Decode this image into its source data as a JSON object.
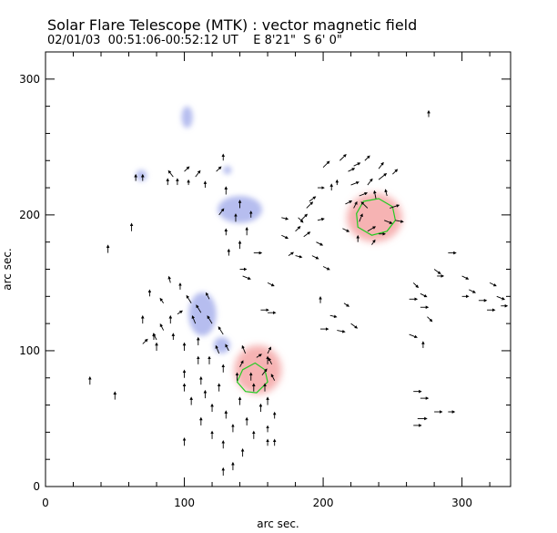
{
  "title": "Solar Flare Telescope (MTK) : vector magnetic field",
  "subtitle": "02/01/03  00:51:06-00:52:12 UT    E 8'21\"  S 6' 0\"",
  "chart_data": {
    "type": "vector-map",
    "xlabel": "arc sec.",
    "ylabel": "arc sec.",
    "xlim": [
      0,
      335
    ],
    "ylim": [
      0,
      320
    ],
    "xticks": [
      0,
      100,
      200,
      300
    ],
    "yticks": [
      0,
      100,
      200,
      300
    ],
    "polarity_colors": {
      "positive": "#f4a6a6",
      "negative": "#a9b2ec",
      "contour": "#22cc22",
      "vector": "#000000"
    },
    "positive_regions": [
      {
        "x": 237,
        "y": 198,
        "rx": 20,
        "ry": 18
      },
      {
        "x": 153,
        "y": 86,
        "rx": 17,
        "ry": 18
      }
    ],
    "negative_regions": [
      {
        "x": 113,
        "y": 127,
        "rx": 10,
        "ry": 16
      },
      {
        "x": 127,
        "y": 104,
        "rx": 6,
        "ry": 6
      },
      {
        "x": 140,
        "y": 204,
        "rx": 16,
        "ry": 10
      },
      {
        "x": 69,
        "y": 229,
        "rx": 4,
        "ry": 4
      },
      {
        "x": 102,
        "y": 272,
        "rx": 4,
        "ry": 8
      },
      {
        "x": 131,
        "y": 233,
        "rx": 3,
        "ry": 3
      }
    ],
    "contours": [
      [
        [
          229,
          210
        ],
        [
          240,
          212
        ],
        [
          250,
          206
        ],
        [
          252,
          196
        ],
        [
          246,
          188
        ],
        [
          235,
          185
        ],
        [
          225,
          191
        ],
        [
          224,
          201
        ]
      ],
      [
        [
          142,
          86
        ],
        [
          151,
          91
        ],
        [
          158,
          86
        ],
        [
          160,
          77
        ],
        [
          152,
          69
        ],
        [
          144,
          70
        ],
        [
          138,
          77
        ]
      ]
    ],
    "vectors": [
      [
        238,
        212,
        -1,
        5
      ],
      [
        248,
        205,
        6,
        2
      ],
      [
        252,
        196,
        5,
        -1
      ],
      [
        226,
        195,
        2,
        5
      ],
      [
        232,
        188,
        5,
        3
      ],
      [
        240,
        186,
        4,
        0
      ],
      [
        222,
        205,
        2,
        4
      ],
      [
        232,
        205,
        -4,
        4
      ],
      [
        244,
        196,
        5,
        -2
      ],
      [
        226,
        214,
        5,
        2
      ],
      [
        246,
        214,
        -1,
        4
      ],
      [
        216,
        208,
        4,
        2
      ],
      [
        220,
        222,
        5,
        2
      ],
      [
        232,
        222,
        3,
        4
      ],
      [
        240,
        226,
        5,
        4
      ],
      [
        225,
        180,
        0,
        4
      ],
      [
        235,
        178,
        2,
        3
      ],
      [
        214,
        190,
        4,
        -2
      ],
      [
        206,
        218,
        0,
        4
      ],
      [
        200,
        235,
        4,
        4
      ],
      [
        212,
        240,
        4,
        4
      ],
      [
        222,
        236,
        4,
        2
      ],
      [
        240,
        234,
        3,
        4
      ],
      [
        250,
        230,
        3,
        3
      ],
      [
        190,
        210,
        4,
        3
      ],
      [
        196,
        196,
        4,
        1
      ],
      [
        186,
        184,
        4,
        3
      ],
      [
        180,
        170,
        4,
        -1
      ],
      [
        192,
        170,
        4,
        -2
      ],
      [
        200,
        162,
        4,
        -2
      ],
      [
        184,
        196,
        4,
        4
      ],
      [
        170,
        198,
        4,
        -1
      ],
      [
        180,
        188,
        3,
        3
      ],
      [
        210,
        222,
        0,
        3
      ],
      [
        218,
        232,
        4,
        2
      ],
      [
        196,
        220,
        4,
        0
      ],
      [
        198,
        116,
        5,
        0
      ],
      [
        205,
        126,
        4,
        -1
      ],
      [
        220,
        120,
        4,
        -3
      ],
      [
        215,
        135,
        3,
        -2
      ],
      [
        210,
        115,
        5,
        -1
      ],
      [
        198,
        135,
        0,
        4
      ],
      [
        265,
        150,
        3,
        -3
      ],
      [
        270,
        142,
        4,
        -2
      ],
      [
        270,
        132,
        5,
        0
      ],
      [
        262,
        138,
        5,
        0
      ],
      [
        275,
        125,
        3,
        -3
      ],
      [
        262,
        112,
        5,
        -2
      ],
      [
        272,
        102,
        0,
        4
      ],
      [
        282,
        155,
        4,
        0
      ],
      [
        300,
        155,
        4,
        -2
      ],
      [
        305,
        145,
        4,
        -2
      ],
      [
        312,
        137,
        5,
        0
      ],
      [
        320,
        150,
        4,
        -2
      ],
      [
        325,
        140,
        5,
        -2
      ],
      [
        300,
        140,
        4,
        0
      ],
      [
        318,
        130,
        5,
        0
      ],
      [
        328,
        133,
        4,
        0
      ],
      [
        290,
        172,
        5,
        0
      ],
      [
        280,
        160,
        4,
        -3
      ],
      [
        265,
        70,
        5,
        0
      ],
      [
        270,
        65,
        5,
        0
      ],
      [
        268,
        50,
        6,
        0
      ],
      [
        280,
        55,
        5,
        0
      ],
      [
        290,
        55,
        4,
        0
      ],
      [
        265,
        45,
        5,
        0
      ],
      [
        105,
        135,
        -3,
        5
      ],
      [
        112,
        128,
        -3,
        5
      ],
      [
        120,
        120,
        -3,
        5
      ],
      [
        128,
        112,
        -3,
        5
      ],
      [
        118,
        138,
        -2,
        4
      ],
      [
        108,
        120,
        -2,
        5
      ],
      [
        125,
        98,
        -2,
        5
      ],
      [
        118,
        90,
        0,
        5
      ],
      [
        110,
        104,
        0,
        5
      ],
      [
        100,
        100,
        0,
        5
      ],
      [
        132,
        100,
        -2,
        4
      ],
      [
        128,
        84,
        0,
        5
      ],
      [
        138,
        78,
        0,
        5
      ],
      [
        140,
        88,
        2,
        4
      ],
      [
        148,
        78,
        0,
        5
      ],
      [
        156,
        82,
        3,
        4
      ],
      [
        160,
        90,
        0,
        5
      ],
      [
        144,
        98,
        -2,
        5
      ],
      [
        150,
        70,
        0,
        5
      ],
      [
        158,
        70,
        0,
        5
      ],
      [
        165,
        78,
        -2,
        4
      ],
      [
        152,
        95,
        3,
        2
      ],
      [
        160,
        98,
        2,
        4
      ],
      [
        163,
        90,
        -2,
        4
      ],
      [
        100,
        80,
        0,
        5
      ],
      [
        100,
        70,
        0,
        5
      ],
      [
        105,
        60,
        0,
        5
      ],
      [
        112,
        75,
        0,
        5
      ],
      [
        115,
        65,
        0,
        5
      ],
      [
        120,
        55,
        0,
        5
      ],
      [
        125,
        70,
        0,
        5
      ],
      [
        130,
        50,
        0,
        5
      ],
      [
        135,
        40,
        0,
        5
      ],
      [
        140,
        60,
        0,
        5
      ],
      [
        145,
        45,
        0,
        5
      ],
      [
        155,
        55,
        0,
        5
      ],
      [
        160,
        40,
        0,
        4
      ],
      [
        165,
        30,
        0,
        4
      ],
      [
        128,
        28,
        0,
        5
      ],
      [
        135,
        12,
        0,
        5
      ],
      [
        128,
        8,
        0,
        5
      ],
      [
        120,
        35,
        0,
        5
      ],
      [
        110,
        90,
        0,
        5
      ],
      [
        112,
        45,
        0,
        5
      ],
      [
        150,
        35,
        0,
        5
      ],
      [
        142,
        22,
        0,
        5
      ],
      [
        160,
        60,
        0,
        5
      ],
      [
        165,
        50,
        0,
        4
      ],
      [
        92,
        108,
        0,
        4
      ],
      [
        85,
        115,
        -2,
        4
      ],
      [
        78,
        108,
        0,
        4
      ],
      [
        90,
        120,
        0,
        5
      ],
      [
        70,
        105,
        3,
        3
      ],
      [
        80,
        100,
        0,
        5
      ],
      [
        97,
        145,
        0,
        4
      ],
      [
        90,
        150,
        -1,
        4
      ],
      [
        75,
        140,
        0,
        4
      ],
      [
        85,
        135,
        -2,
        3
      ],
      [
        70,
        120,
        0,
        5
      ],
      [
        95,
        127,
        3,
        2
      ],
      [
        130,
        215,
        0,
        5
      ],
      [
        140,
        205,
        0,
        5
      ],
      [
        137,
        195,
        0,
        5
      ],
      [
        145,
        185,
        0,
        5
      ],
      [
        140,
        175,
        0,
        5
      ],
      [
        130,
        185,
        0,
        4
      ],
      [
        148,
        198,
        0,
        4
      ],
      [
        125,
        200,
        3,
        4
      ],
      [
        132,
        170,
        0,
        4
      ],
      [
        140,
        160,
        4,
        0
      ],
      [
        150,
        172,
        5,
        0
      ],
      [
        142,
        155,
        5,
        -2
      ],
      [
        155,
        130,
        5,
        0
      ],
      [
        160,
        128,
        5,
        0
      ],
      [
        175,
        170,
        3,
        2
      ],
      [
        170,
        185,
        4,
        -2
      ],
      [
        182,
        198,
        3,
        -3
      ],
      [
        160,
        150,
        4,
        -2
      ],
      [
        65,
        225,
        0,
        4
      ],
      [
        70,
        225,
        0,
        4
      ],
      [
        88,
        222,
        0,
        4
      ],
      [
        95,
        222,
        0,
        4
      ],
      [
        92,
        228,
        -3,
        4
      ],
      [
        100,
        232,
        3,
        3
      ],
      [
        103,
        222,
        0,
        3
      ],
      [
        108,
        228,
        3,
        4
      ],
      [
        123,
        232,
        3,
        3
      ],
      [
        128,
        240,
        0,
        4
      ],
      [
        115,
        220,
        0,
        4
      ],
      [
        62,
        188,
        0,
        5
      ],
      [
        80,
        108,
        -2,
        4
      ],
      [
        45,
        172,
        0,
        5
      ],
      [
        32,
        75,
        0,
        5
      ],
      [
        50,
        64,
        0,
        5
      ],
      [
        100,
        30,
        0,
        5
      ],
      [
        160,
        30,
        0,
        4
      ],
      [
        276,
        272,
        0,
        4
      ],
      [
        230,
        240,
        3,
        3
      ],
      [
        188,
        205,
        4,
        4
      ],
      [
        195,
        180,
        4,
        -2
      ]
    ]
  }
}
